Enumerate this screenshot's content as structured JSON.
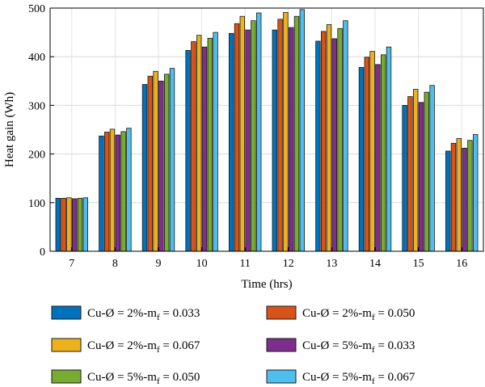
{
  "chart_data": {
    "type": "bar",
    "title": "",
    "xlabel": "Time (hrs)",
    "ylabel": "Heat gain (Wh)",
    "ylim": [
      0,
      500
    ],
    "yticks": [
      0,
      100,
      200,
      300,
      400,
      500
    ],
    "grid": true,
    "legend_position": "bottom",
    "categories": [
      "7",
      "8",
      "9",
      "10",
      "11",
      "12",
      "13",
      "14",
      "15",
      "16"
    ],
    "series": [
      {
        "name": "Cu-Ø = 2%-m_f = 0.033",
        "label_main": "Cu-Ø = 2%-m",
        "label_sub": "f",
        "label_tail": " = 0.033",
        "color": "#0072BD",
        "values": [
          109,
          237,
          343,
          413,
          448,
          455,
          432,
          378,
          300,
          206
        ]
      },
      {
        "name": "Cu-Ø = 2%-m_f = 0.050",
        "label_main": "Cu-Ø = 2%-m",
        "label_sub": "f",
        "label_tail": " = 0.050",
        "color": "#D95319",
        "values": [
          109,
          245,
          360,
          431,
          468,
          477,
          452,
          399,
          318,
          222
        ]
      },
      {
        "name": "Cu-Ø = 2%-m_f = 0.067",
        "label_main": "Cu-Ø = 2%-m",
        "label_sub": "f",
        "label_tail": " = 0.067",
        "color": "#EDB120",
        "values": [
          110,
          251,
          370,
          444,
          483,
          491,
          466,
          411,
          333,
          232
        ]
      },
      {
        "name": "Cu-Ø = 5%-m_f = 0.033",
        "label_main": "Cu-Ø = 5%-m",
        "label_sub": "f",
        "label_tail": " = 0.033",
        "color": "#7E2F8E",
        "values": [
          108,
          239,
          350,
          420,
          455,
          460,
          437,
          384,
          306,
          212
        ]
      },
      {
        "name": "Cu-Ø = 5%-m_f = 0.050",
        "label_main": "Cu-Ø = 5%-m",
        "label_sub": "f",
        "label_tail": " = 0.050",
        "color": "#77AC30",
        "values": [
          109,
          246,
          364,
          438,
          474,
          483,
          458,
          404,
          327,
          228
        ]
      },
      {
        "name": "Cu-Ø = 5%-m_f = 0.067",
        "label_main": "Cu-Ø = 5%-m",
        "label_sub": "f",
        "label_tail": " = 0.067",
        "color": "#4DBEEE",
        "values": [
          110,
          253,
          376,
          450,
          490,
          497,
          474,
          420,
          341,
          240
        ]
      }
    ]
  }
}
